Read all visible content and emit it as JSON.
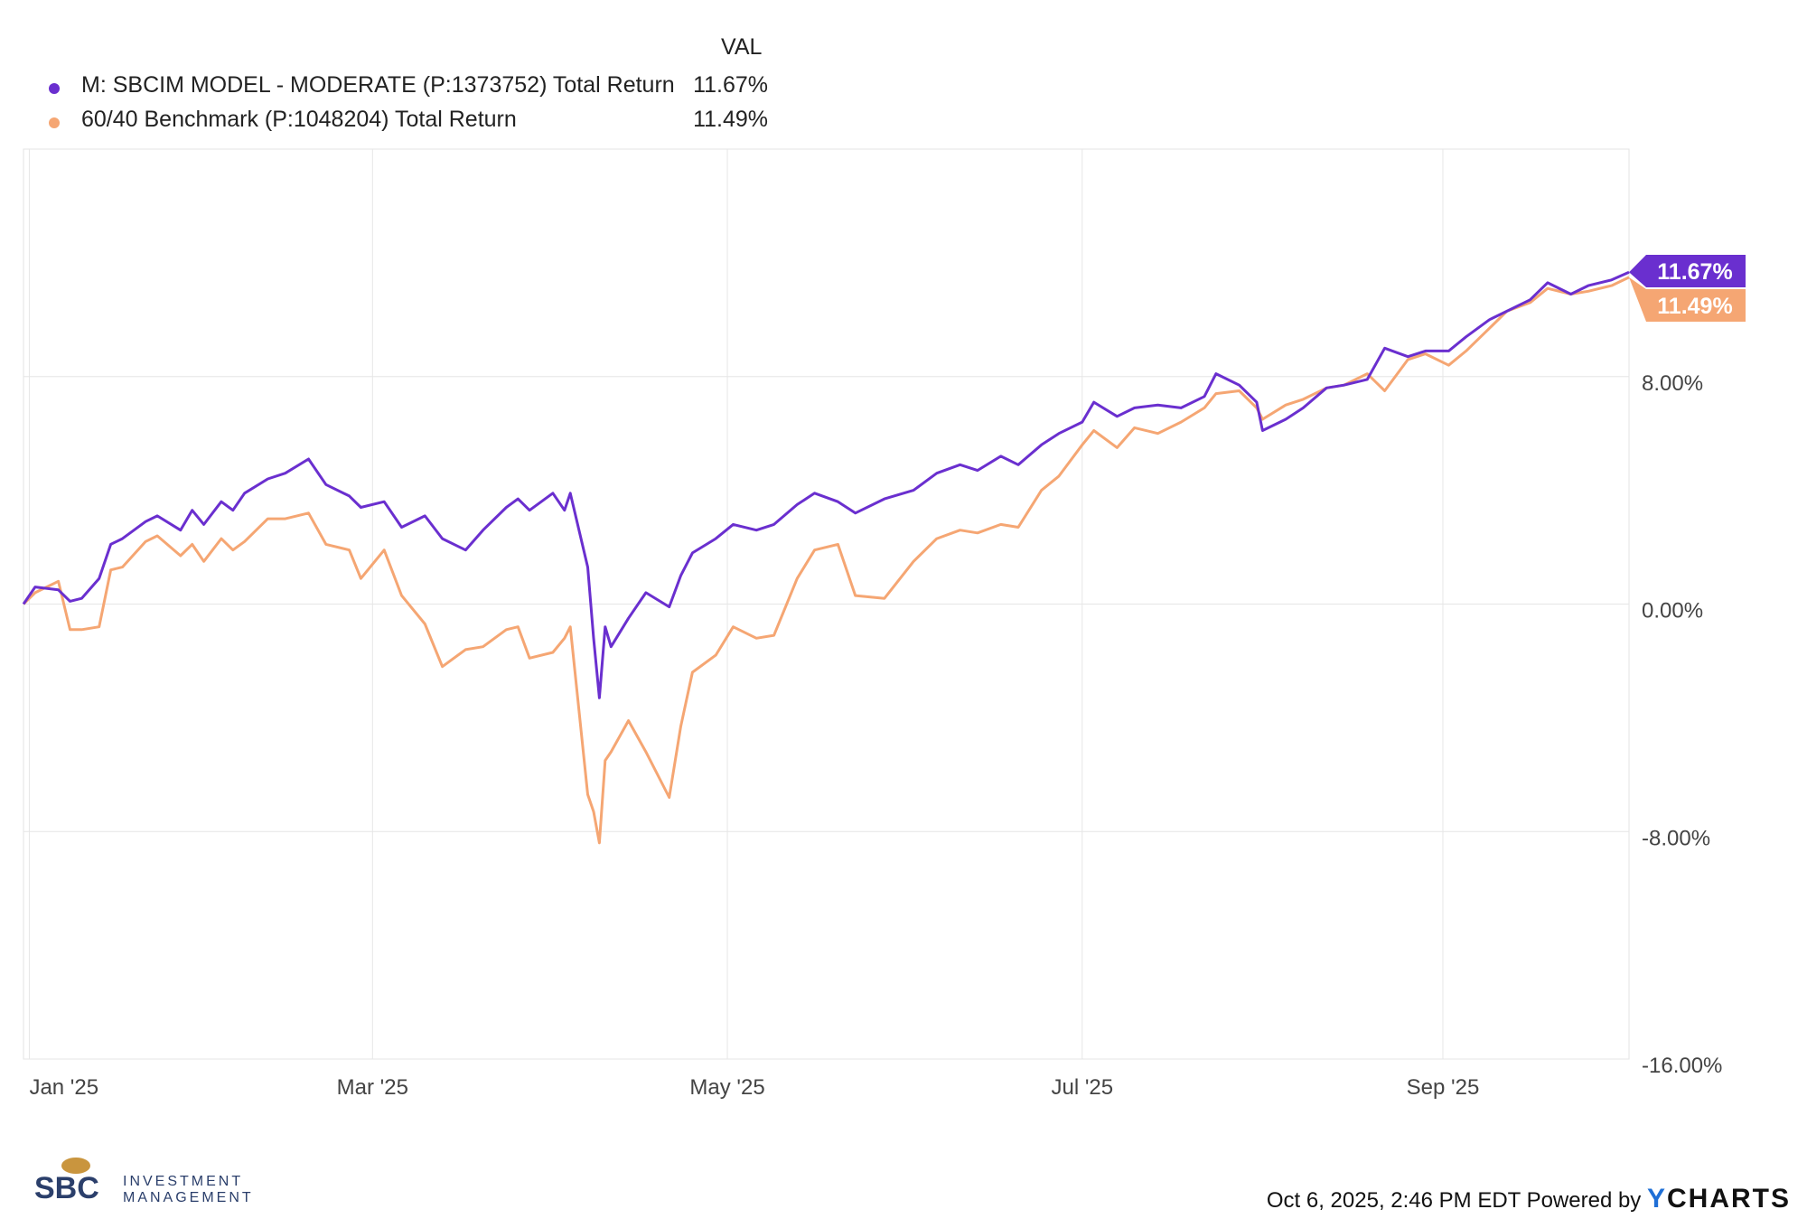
{
  "legend": {
    "header": "VAL",
    "items": [
      {
        "name": "M: SBCIM MODEL - MODERATE (P:1373752) Total Return",
        "value": "11.67%",
        "color": "#6a2fcf"
      },
      {
        "name": "60/40 Benchmark (P:1048204) Total Return",
        "value": "11.49%",
        "color": "#f5a673"
      }
    ]
  },
  "footer": {
    "timestamp": "Oct 6, 2025, 2:46 PM EDT",
    "powered_by": "Powered by",
    "brand_y": "Y",
    "brand_rest": "CHARTS"
  },
  "logo": {
    "initials": "SBC",
    "line1": "INVESTMENT",
    "line2": "MANAGEMENT"
  },
  "chart_data": {
    "type": "line",
    "x_range": [
      "2024-12-31",
      "2025-10-03"
    ],
    "ylim": [
      -16,
      16
    ],
    "y_ticks": [
      "8.00%",
      "0.00%",
      "-8.00%",
      "-16.00%"
    ],
    "y_tick_values": [
      8,
      0,
      -8,
      -16
    ],
    "x_ticks": [
      "Jan '25",
      "Mar '25",
      "May '25",
      "Jul '25",
      "Sep '25"
    ],
    "x_tick_dates": [
      "2025-01-01",
      "2025-03-01",
      "2025-05-01",
      "2025-07-01",
      "2025-09-01"
    ],
    "grid": true,
    "legend_position": "top-left",
    "series": [
      {
        "name": "M: SBCIM MODEL - MODERATE (P:1373752) Total Return",
        "color": "#6a2fcf",
        "end_label": "11.67%",
        "points": [
          [
            "2024-12-31",
            0
          ],
          [
            "2025-01-02",
            0.6
          ],
          [
            "2025-01-06",
            0.5
          ],
          [
            "2025-01-08",
            0.1
          ],
          [
            "2025-01-10",
            0.2
          ],
          [
            "2025-01-13",
            0.9
          ],
          [
            "2025-01-15",
            2.1
          ],
          [
            "2025-01-17",
            2.3
          ],
          [
            "2025-01-21",
            2.9
          ],
          [
            "2025-01-23",
            3.1
          ],
          [
            "2025-01-27",
            2.6
          ],
          [
            "2025-01-29",
            3.3
          ],
          [
            "2025-01-31",
            2.8
          ],
          [
            "2025-02-03",
            3.6
          ],
          [
            "2025-02-05",
            3.3
          ],
          [
            "2025-02-07",
            3.9
          ],
          [
            "2025-02-11",
            4.4
          ],
          [
            "2025-02-14",
            4.6
          ],
          [
            "2025-02-18",
            5.1
          ],
          [
            "2025-02-21",
            4.2
          ],
          [
            "2025-02-25",
            3.8
          ],
          [
            "2025-02-27",
            3.4
          ],
          [
            "2025-03-03",
            3.6
          ],
          [
            "2025-03-06",
            2.7
          ],
          [
            "2025-03-10",
            3.1
          ],
          [
            "2025-03-13",
            2.3
          ],
          [
            "2025-03-17",
            1.9
          ],
          [
            "2025-03-20",
            2.6
          ],
          [
            "2025-03-24",
            3.4
          ],
          [
            "2025-03-26",
            3.7
          ],
          [
            "2025-03-28",
            3.3
          ],
          [
            "2025-04-01",
            3.9
          ],
          [
            "2025-04-03",
            3.3
          ],
          [
            "2025-04-04",
            3.9
          ],
          [
            "2025-04-07",
            1.3
          ],
          [
            "2025-04-08",
            -1.2
          ],
          [
            "2025-04-09",
            -3.3
          ],
          [
            "2025-04-10",
            -0.8
          ],
          [
            "2025-04-11",
            -1.5
          ],
          [
            "2025-04-14",
            -0.5
          ],
          [
            "2025-04-17",
            0.4
          ],
          [
            "2025-04-21",
            -0.1
          ],
          [
            "2025-04-23",
            1.0
          ],
          [
            "2025-04-25",
            1.8
          ],
          [
            "2025-04-29",
            2.3
          ],
          [
            "2025-05-02",
            2.8
          ],
          [
            "2025-05-06",
            2.6
          ],
          [
            "2025-05-09",
            2.8
          ],
          [
            "2025-05-13",
            3.5
          ],
          [
            "2025-05-16",
            3.9
          ],
          [
            "2025-05-20",
            3.6
          ],
          [
            "2025-05-23",
            3.2
          ],
          [
            "2025-05-28",
            3.7
          ],
          [
            "2025-06-02",
            4.0
          ],
          [
            "2025-06-06",
            4.6
          ],
          [
            "2025-06-10",
            4.9
          ],
          [
            "2025-06-13",
            4.7
          ],
          [
            "2025-06-17",
            5.2
          ],
          [
            "2025-06-20",
            4.9
          ],
          [
            "2025-06-24",
            5.6
          ],
          [
            "2025-06-27",
            6.0
          ],
          [
            "2025-07-01",
            6.4
          ],
          [
            "2025-07-03",
            7.1
          ],
          [
            "2025-07-07",
            6.6
          ],
          [
            "2025-07-10",
            6.9
          ],
          [
            "2025-07-14",
            7.0
          ],
          [
            "2025-07-18",
            6.9
          ],
          [
            "2025-07-22",
            7.3
          ],
          [
            "2025-07-24",
            8.1
          ],
          [
            "2025-07-28",
            7.7
          ],
          [
            "2025-07-31",
            7.1
          ],
          [
            "2025-08-01",
            6.1
          ],
          [
            "2025-08-05",
            6.5
          ],
          [
            "2025-08-08",
            6.9
          ],
          [
            "2025-08-12",
            7.6
          ],
          [
            "2025-08-15",
            7.7
          ],
          [
            "2025-08-19",
            7.9
          ],
          [
            "2025-08-22",
            9.0
          ],
          [
            "2025-08-26",
            8.7
          ],
          [
            "2025-08-29",
            8.9
          ],
          [
            "2025-09-02",
            8.9
          ],
          [
            "2025-09-05",
            9.4
          ],
          [
            "2025-09-09",
            10.0
          ],
          [
            "2025-09-12",
            10.3
          ],
          [
            "2025-09-16",
            10.7
          ],
          [
            "2025-09-19",
            11.3
          ],
          [
            "2025-09-23",
            10.9
          ],
          [
            "2025-09-26",
            11.2
          ],
          [
            "2025-09-30",
            11.4
          ],
          [
            "2025-10-03",
            11.67
          ]
        ]
      },
      {
        "name": "60/40 Benchmark (P:1048204) Total Return",
        "color": "#f5a673",
        "end_label": "11.49%",
        "points": [
          [
            "2024-12-31",
            0
          ],
          [
            "2025-01-02",
            0.4
          ],
          [
            "2025-01-06",
            0.8
          ],
          [
            "2025-01-08",
            -0.9
          ],
          [
            "2025-01-10",
            -0.9
          ],
          [
            "2025-01-13",
            -0.8
          ],
          [
            "2025-01-15",
            1.2
          ],
          [
            "2025-01-17",
            1.3
          ],
          [
            "2025-01-21",
            2.2
          ],
          [
            "2025-01-23",
            2.4
          ],
          [
            "2025-01-27",
            1.7
          ],
          [
            "2025-01-29",
            2.1
          ],
          [
            "2025-01-31",
            1.5
          ],
          [
            "2025-02-03",
            2.3
          ],
          [
            "2025-02-05",
            1.9
          ],
          [
            "2025-02-07",
            2.2
          ],
          [
            "2025-02-11",
            3.0
          ],
          [
            "2025-02-14",
            3.0
          ],
          [
            "2025-02-18",
            3.2
          ],
          [
            "2025-02-21",
            2.1
          ],
          [
            "2025-02-25",
            1.9
          ],
          [
            "2025-02-27",
            0.9
          ],
          [
            "2025-03-03",
            1.9
          ],
          [
            "2025-03-06",
            0.3
          ],
          [
            "2025-03-10",
            -0.7
          ],
          [
            "2025-03-13",
            -2.2
          ],
          [
            "2025-03-17",
            -1.6
          ],
          [
            "2025-03-20",
            -1.5
          ],
          [
            "2025-03-24",
            -0.9
          ],
          [
            "2025-03-26",
            -0.8
          ],
          [
            "2025-03-28",
            -1.9
          ],
          [
            "2025-04-01",
            -1.7
          ],
          [
            "2025-04-03",
            -1.2
          ],
          [
            "2025-04-04",
            -0.8
          ],
          [
            "2025-04-07",
            -6.7
          ],
          [
            "2025-04-08",
            -7.3
          ],
          [
            "2025-04-09",
            -8.4
          ],
          [
            "2025-04-10",
            -5.5
          ],
          [
            "2025-04-11",
            -5.2
          ],
          [
            "2025-04-14",
            -4.1
          ],
          [
            "2025-04-17",
            -5.2
          ],
          [
            "2025-04-21",
            -6.8
          ],
          [
            "2025-04-23",
            -4.3
          ],
          [
            "2025-04-25",
            -2.4
          ],
          [
            "2025-04-29",
            -1.8
          ],
          [
            "2025-05-02",
            -0.8
          ],
          [
            "2025-05-06",
            -1.2
          ],
          [
            "2025-05-09",
            -1.1
          ],
          [
            "2025-05-13",
            0.9
          ],
          [
            "2025-05-16",
            1.9
          ],
          [
            "2025-05-20",
            2.1
          ],
          [
            "2025-05-23",
            0.3
          ],
          [
            "2025-05-28",
            0.2
          ],
          [
            "2025-06-02",
            1.5
          ],
          [
            "2025-06-06",
            2.3
          ],
          [
            "2025-06-10",
            2.6
          ],
          [
            "2025-06-13",
            2.5
          ],
          [
            "2025-06-17",
            2.8
          ],
          [
            "2025-06-20",
            2.7
          ],
          [
            "2025-06-24",
            4.0
          ],
          [
            "2025-06-27",
            4.5
          ],
          [
            "2025-07-01",
            5.6
          ],
          [
            "2025-07-03",
            6.1
          ],
          [
            "2025-07-07",
            5.5
          ],
          [
            "2025-07-10",
            6.2
          ],
          [
            "2025-07-14",
            6.0
          ],
          [
            "2025-07-18",
            6.4
          ],
          [
            "2025-07-22",
            6.9
          ],
          [
            "2025-07-24",
            7.4
          ],
          [
            "2025-07-28",
            7.5
          ],
          [
            "2025-07-31",
            6.9
          ],
          [
            "2025-08-01",
            6.5
          ],
          [
            "2025-08-05",
            7.0
          ],
          [
            "2025-08-08",
            7.2
          ],
          [
            "2025-08-12",
            7.6
          ],
          [
            "2025-08-15",
            7.7
          ],
          [
            "2025-08-19",
            8.1
          ],
          [
            "2025-08-22",
            7.5
          ],
          [
            "2025-08-26",
            8.6
          ],
          [
            "2025-08-29",
            8.8
          ],
          [
            "2025-09-02",
            8.4
          ],
          [
            "2025-09-05",
            8.9
          ],
          [
            "2025-09-09",
            9.7
          ],
          [
            "2025-09-12",
            10.3
          ],
          [
            "2025-09-16",
            10.6
          ],
          [
            "2025-09-19",
            11.1
          ],
          [
            "2025-09-23",
            10.9
          ],
          [
            "2025-09-26",
            11.0
          ],
          [
            "2025-09-30",
            11.2
          ],
          [
            "2025-10-03",
            11.49
          ]
        ]
      }
    ]
  }
}
